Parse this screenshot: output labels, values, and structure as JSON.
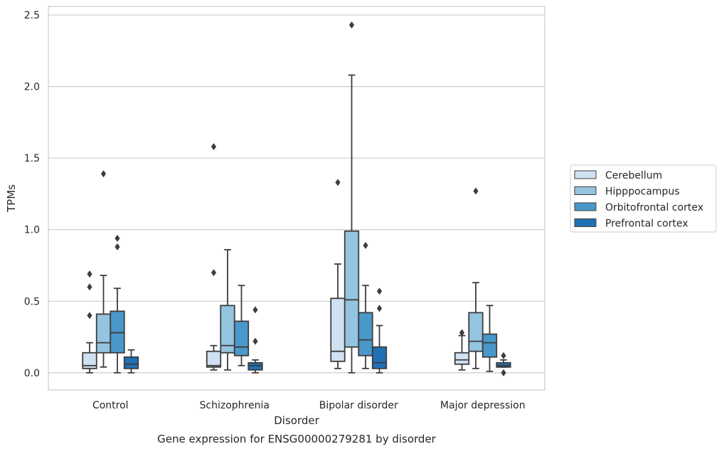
{
  "chart_data": {
    "type": "box",
    "caption": "Gene expression for ENSG00000279281 by disorder",
    "xlabel": "Disorder",
    "ylabel": "TPMs",
    "ylim": [
      -0.12,
      2.56
    ],
    "yticks": [
      "0.0",
      "0.5",
      "1.0",
      "1.5",
      "2.0",
      "2.5"
    ],
    "ytick_values": [
      0,
      0.5,
      1.0,
      1.5,
      2.0,
      2.5
    ],
    "grid": true,
    "legend_position": "right, outside plot",
    "categories": [
      "Control",
      "Schizophrenia",
      "Bipolar disorder",
      "Major depression"
    ],
    "series": [
      {
        "name": "Cerebellum",
        "color": "#d0e1f2",
        "boxes": [
          {
            "whisker_low": 0.0,
            "q1": 0.03,
            "median": 0.05,
            "q3": 0.14,
            "whisker_high": 0.21,
            "outliers": [
              0.4,
              0.6,
              0.69
            ]
          },
          {
            "whisker_low": 0.02,
            "q1": 0.04,
            "median": 0.05,
            "q3": 0.15,
            "whisker_high": 0.19,
            "outliers": [
              0.7,
              1.58
            ]
          },
          {
            "whisker_low": 0.03,
            "q1": 0.08,
            "median": 0.15,
            "q3": 0.52,
            "whisker_high": 0.76,
            "outliers": [
              1.33
            ]
          },
          {
            "whisker_low": 0.02,
            "q1": 0.06,
            "median": 0.09,
            "q3": 0.14,
            "whisker_high": 0.26,
            "outliers": [
              0.28
            ]
          }
        ]
      },
      {
        "name": "Hipppocampus",
        "color": "#94c4df",
        "boxes": [
          {
            "whisker_low": 0.04,
            "q1": 0.14,
            "median": 0.21,
            "q3": 0.41,
            "whisker_high": 0.68,
            "outliers": [
              1.39
            ]
          },
          {
            "whisker_low": 0.02,
            "q1": 0.14,
            "median": 0.19,
            "q3": 0.47,
            "whisker_high": 0.86,
            "outliers": []
          },
          {
            "whisker_low": 0.0,
            "q1": 0.18,
            "median": 0.51,
            "q3": 0.99,
            "whisker_high": 2.08,
            "outliers": [
              2.43
            ]
          },
          {
            "whisker_low": 0.03,
            "q1": 0.15,
            "median": 0.22,
            "q3": 0.42,
            "whisker_high": 0.63,
            "outliers": [
              1.27
            ]
          }
        ]
      },
      {
        "name": "Orbitofrontal cortex",
        "color": "#4a98c9",
        "boxes": [
          {
            "whisker_low": 0.0,
            "q1": 0.14,
            "median": 0.28,
            "q3": 0.43,
            "whisker_high": 0.59,
            "outliers": [
              0.88,
              0.94
            ]
          },
          {
            "whisker_low": 0.05,
            "q1": 0.12,
            "median": 0.18,
            "q3": 0.36,
            "whisker_high": 0.61,
            "outliers": []
          },
          {
            "whisker_low": 0.03,
            "q1": 0.12,
            "median": 0.23,
            "q3": 0.42,
            "whisker_high": 0.61,
            "outliers": [
              0.89
            ]
          },
          {
            "whisker_low": 0.01,
            "q1": 0.11,
            "median": 0.21,
            "q3": 0.27,
            "whisker_high": 0.47,
            "outliers": []
          }
        ]
      },
      {
        "name": "Prefrontal cortex",
        "color": "#2070b4",
        "boxes": [
          {
            "whisker_low": 0.0,
            "q1": 0.03,
            "median": 0.06,
            "q3": 0.11,
            "whisker_high": 0.16,
            "outliers": []
          },
          {
            "whisker_low": 0.0,
            "q1": 0.02,
            "median": 0.05,
            "q3": 0.07,
            "whisker_high": 0.09,
            "outliers": [
              0.22,
              0.44
            ]
          },
          {
            "whisker_low": 0.0,
            "q1": 0.03,
            "median": 0.07,
            "q3": 0.18,
            "whisker_high": 0.33,
            "outliers": [
              0.45,
              0.57
            ]
          },
          {
            "whisker_low": 0.04,
            "q1": 0.04,
            "median": 0.05,
            "q3": 0.07,
            "whisker_high": 0.09,
            "outliers": [
              0.0,
              0.12
            ]
          }
        ]
      }
    ]
  }
}
